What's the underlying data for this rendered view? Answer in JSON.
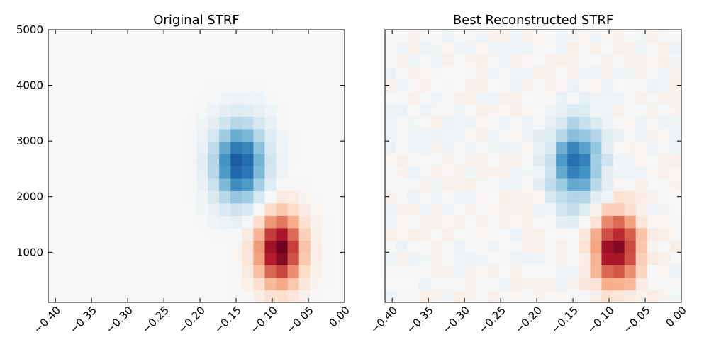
{
  "chart_data": [
    {
      "type": "heatmap",
      "title": "Original STRF",
      "xlim": [
        -0.41,
        0.0
      ],
      "ylim": [
        100,
        5000
      ],
      "xticks": [
        "−0.40",
        "−0.35",
        "−0.30",
        "−0.25",
        "−0.20",
        "−0.15",
        "−0.10",
        "−0.05",
        "0.00"
      ],
      "yticks": [
        "5000",
        "4000",
        "3000",
        "2000",
        "1000"
      ],
      "colormap": "RdBu_r",
      "blobs": [
        {
          "t": -0.145,
          "f": 2600,
          "st": 0.025,
          "sf": 500,
          "amp": -0.85
        },
        {
          "t": -0.09,
          "f": 1050,
          "st": 0.022,
          "sf": 450,
          "amp": 1.0
        }
      ],
      "noise": 0.0
    },
    {
      "type": "heatmap",
      "title": "Best Reconstructed STRF",
      "xlim": [
        -0.41,
        0.0
      ],
      "ylim": [
        100,
        5000
      ],
      "xticks": [
        "−0.40",
        "−0.35",
        "−0.30",
        "−0.25",
        "−0.20",
        "−0.15",
        "−0.10",
        "−0.05",
        "0.00"
      ],
      "yticks": [],
      "colormap": "RdBu_r",
      "blobs": [
        {
          "t": -0.145,
          "f": 2600,
          "st": 0.025,
          "sf": 520,
          "amp": -0.72
        },
        {
          "t": -0.09,
          "f": 1050,
          "st": 0.022,
          "sf": 470,
          "amp": 0.95
        }
      ],
      "noise": 0.06
    }
  ]
}
